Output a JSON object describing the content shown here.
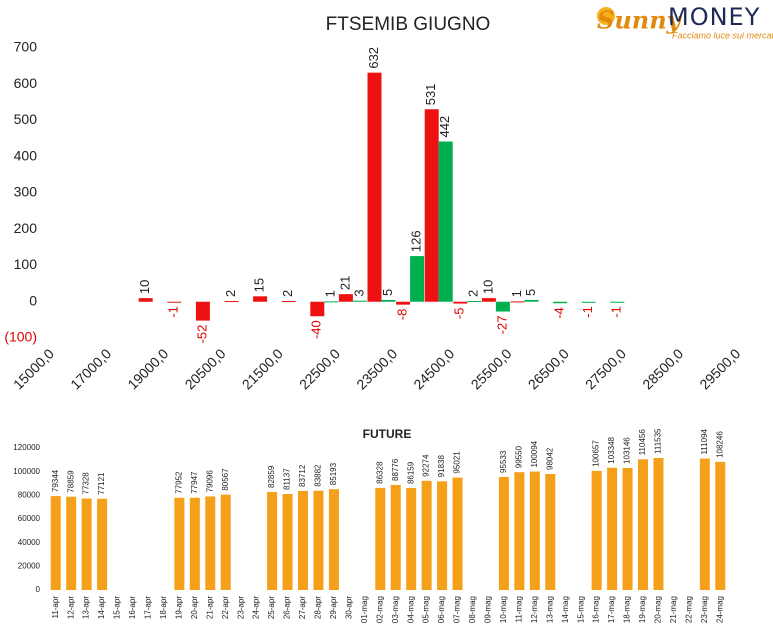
{
  "logo": {
    "brand": "Sunny",
    "name": "MONEY",
    "tagline": "Facciamo luce sui mercati"
  },
  "chart_data": [
    {
      "type": "bar",
      "title": "FTSEMIB GIUGNO",
      "categories": [
        "15000,0",
        null,
        "17000,0",
        null,
        "19000,0",
        null,
        "20500,0",
        null,
        "21500,0",
        null,
        "22500,0",
        null,
        "23500,0",
        null,
        "24500,0",
        null,
        "25500,0",
        null,
        "26500,0",
        null,
        "27500,0",
        null,
        "28500,0",
        null,
        "29500,0"
      ],
      "series": [
        {
          "color": "#ee1111",
          "values": [
            null,
            null,
            null,
            null,
            10,
            -1,
            -52,
            2,
            15,
            2,
            -40,
            21,
            632,
            -8,
            531,
            -5,
            10,
            1,
            null,
            null,
            null,
            null,
            null,
            null,
            null
          ]
        },
        {
          "color": "#00b050",
          "values": [
            null,
            null,
            null,
            null,
            null,
            null,
            null,
            null,
            null,
            null,
            1,
            3,
            5,
            126,
            442,
            2,
            -27,
            5,
            -4,
            -1,
            -1,
            null,
            null,
            null,
            null
          ]
        }
      ],
      "ylim": [
        -100,
        700
      ],
      "yticks": [
        {
          "value": -100,
          "label": "(100)"
        },
        0,
        100,
        200,
        300,
        400,
        500,
        600,
        700
      ],
      "negative_color": "#e00000",
      "grid": false
    },
    {
      "type": "bar",
      "title": "FUTURE",
      "categories": [
        "11-apr",
        "12-apr",
        "13-apr",
        "14-apr",
        "15-apr",
        "16-apr",
        "17-apr",
        "18-apr",
        "19-apr",
        "20-apr",
        "21-apr",
        "22-apr",
        "23-apr",
        "24-apr",
        "25-apr",
        "26-apr",
        "27-apr",
        "28-apr",
        "29-apr",
        "30-apr",
        "01-mag",
        "02-mag",
        "03-mag",
        "04-mag",
        "05-mag",
        "06-mag",
        "07-mag",
        "08-mag",
        "09-mag",
        "10-mag",
        "11-mag",
        "12-mag",
        "13-mag",
        "14-mag",
        "15-mag",
        "16-mag",
        "17-mag",
        "18-mag",
        "19-mag",
        "20-mag",
        "21-mag",
        "22-mag",
        "23-mag",
        "24-mag"
      ],
      "values": [
        79344,
        78859,
        77328,
        77121,
        null,
        null,
        null,
        null,
        77952,
        77947,
        79096,
        80567,
        null,
        null,
        82859,
        81137,
        83712,
        83882,
        85193,
        null,
        null,
        86328,
        88776,
        86159,
        92274,
        91838,
        95021,
        null,
        null,
        95533,
        99550,
        100094,
        98042,
        null,
        null,
        100657,
        103348,
        103146,
        110456,
        111535,
        null,
        null,
        111094,
        108246
      ],
      "color": "#f5a01a",
      "ylim": [
        0,
        120000
      ],
      "yticks": [
        0,
        20000,
        40000,
        60000,
        80000,
        100000,
        120000
      ],
      "grid": false
    }
  ]
}
